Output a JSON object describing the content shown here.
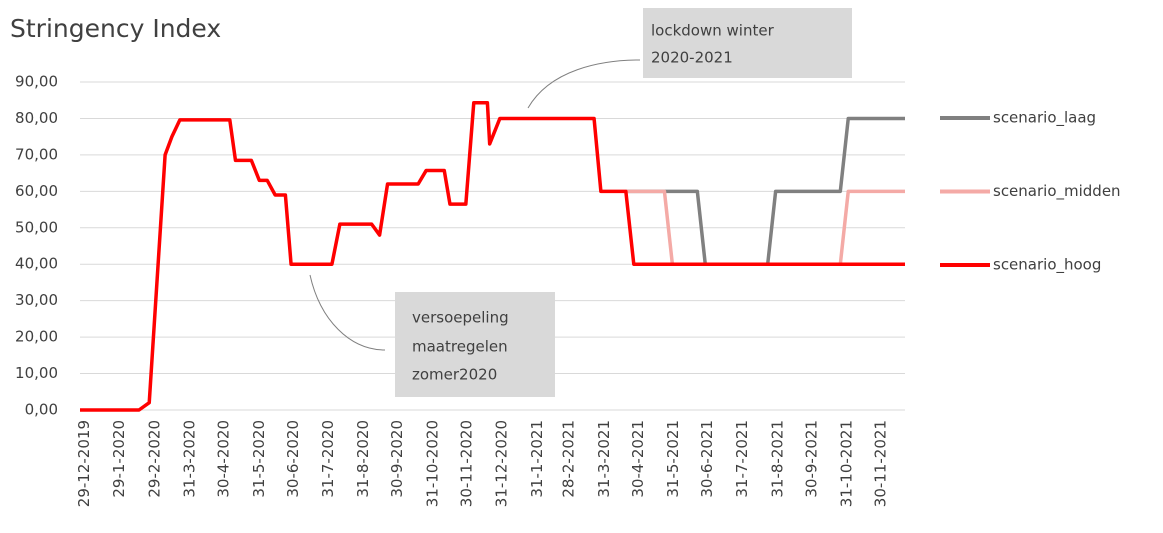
{
  "chart_data": {
    "type": "line",
    "title": "Stringency Index",
    "xlim": [
      "25-12-2019",
      "21-12-2021"
    ],
    "xticks": [
      "29-12-2019",
      "29-1-2020",
      "29-2-2020",
      "31-3-2020",
      "30-4-2020",
      "31-5-2020",
      "30-6-2020",
      "31-7-2020",
      "31-8-2020",
      "30-9-2020",
      "31-10-2020",
      "30-11-2020",
      "31-12-2020",
      "31-1-2021",
      "28-2-2021",
      "31-3-2021",
      "30-4-2021",
      "31-5-2021",
      "30-6-2021",
      "31-7-2021",
      "31-8-2021",
      "30-9-2021",
      "31-10-2021",
      "30-11-2021"
    ],
    "ylim": [
      0,
      90
    ],
    "yticks": [
      {
        "value": 0,
        "label": "0,00"
      },
      {
        "value": 10,
        "label": "10,00"
      },
      {
        "value": 20,
        "label": "20,00"
      },
      {
        "value": 30,
        "label": "30,00"
      },
      {
        "value": 40,
        "label": "40,00"
      },
      {
        "value": 50,
        "label": "50,00"
      },
      {
        "value": 60,
        "label": "60,00"
      },
      {
        "value": 70,
        "label": "70,00"
      },
      {
        "value": 80,
        "label": "80,00"
      },
      {
        "value": 90,
        "label": "90,00"
      }
    ],
    "grid": true,
    "legend": "right",
    "series": [
      {
        "name": "scenario_laag",
        "color": "#808080",
        "x": [
          "19-4-2021",
          "21-6-2021",
          "28-6-2021",
          "22-8-2021",
          "29-8-2021",
          "25-10-2021",
          "1-11-2021",
          "21-12-2021"
        ],
        "values": [
          60,
          60,
          40,
          40,
          60,
          60,
          80,
          80
        ]
      },
      {
        "name": "scenario_midden",
        "color": "#f4aaa6",
        "x": [
          "19-4-2021",
          "23-5-2021",
          "30-5-2021",
          "25-10-2021",
          "1-11-2021",
          "21-12-2021"
        ],
        "values": [
          60,
          60,
          40,
          40,
          60,
          60
        ]
      },
      {
        "name": "scenario_hoog",
        "color": "#ff0000",
        "x": [
          "25-12-2019",
          "15-2-2020",
          "24-2-2020",
          "9-3-2020",
          "15-3-2020",
          "22-3-2020",
          "5-5-2020",
          "10-5-2020",
          "24-5-2020",
          "31-5-2020",
          "7-6-2020",
          "14-6-2020",
          "23-6-2020",
          "28-6-2020",
          "3-8-2020",
          "10-8-2020",
          "7-9-2020",
          "14-9-2020",
          "21-9-2020",
          "18-10-2020",
          "25-10-2020",
          "10-11-2020",
          "15-11-2020",
          "29-11-2020",
          "6-12-2020",
          "18-12-2020",
          "20-12-2020",
          "29-12-2020",
          "22-3-2021",
          "28-3-2021",
          "19-4-2021",
          "26-4-2021",
          "21-12-2021"
        ],
        "values": [
          0,
          0,
          2,
          70,
          75,
          79.6,
          79.6,
          68.5,
          68.5,
          63,
          63,
          59,
          59,
          40,
          40,
          51,
          51,
          48,
          62,
          62,
          65.7,
          65.7,
          56.5,
          56.5,
          84.3,
          84.3,
          73,
          80,
          80,
          60,
          60,
          40,
          40
        ]
      }
    ],
    "annotations": [
      {
        "lines": [
          "lockdown winter",
          "2020-2021"
        ]
      },
      {
        "lines": [
          "versoepeling",
          "maatregelen",
          "zomer2020"
        ]
      }
    ]
  }
}
